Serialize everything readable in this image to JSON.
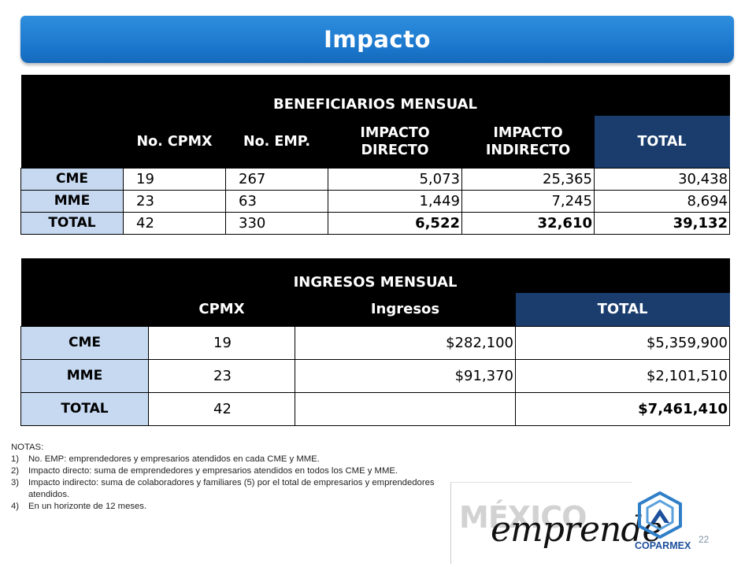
{
  "title": "Impacto",
  "beneficiarios": {
    "title": "BENEFICIARIOS MENSUAL",
    "columns": [
      "",
      "No. CPMX",
      "No. EMP.",
      "IMPACTO DIRECTO",
      "IMPACTO INDIRECTO",
      "TOTAL"
    ],
    "rows": [
      {
        "label": "CME",
        "cpmx": "19",
        "emp": "267",
        "directo": "5,073",
        "indirecto": "25,365",
        "total": "30,438"
      },
      {
        "label": "MME",
        "cpmx": "23",
        "emp": "63",
        "directo": "1,449",
        "indirecto": "7,245",
        "total": "8,694"
      },
      {
        "label": "TOTAL",
        "cpmx": "42",
        "emp": "330",
        "directo": "6,522",
        "indirecto": "32,610",
        "total": "39,132"
      }
    ]
  },
  "ingresos": {
    "title": "INGRESOS MENSUAL",
    "columns": [
      "",
      "CPMX",
      "Ingresos",
      "TOTAL"
    ],
    "rows": [
      {
        "label": "CME",
        "cpmx": "19",
        "ingresos": "$282,100",
        "total": "$5,359,900"
      },
      {
        "label": "MME",
        "cpmx": "23",
        "ingresos": "$91,370",
        "total": "$2,101,510"
      },
      {
        "label": "TOTAL",
        "cpmx": "42",
        "ingresos": "",
        "total": "$7,461,410"
      }
    ]
  },
  "notes": {
    "heading": "NOTAS:",
    "items": [
      {
        "num": "1)",
        "text": "No. EMP: emprendedores y empresarios atendidos en cada CME y MME."
      },
      {
        "num": "2)",
        "text": "Impacto directo: suma de emprendedores y empresarios atendidos en todos los CME y MME."
      },
      {
        "num": "3)",
        "text": "Impacto indirecto: suma de colaboradores y familiares (5) por el total de empresarios y emprendedores atendidos."
      },
      {
        "num": "4)",
        "text": "En un horizonte de 12 meses."
      }
    ]
  },
  "logo": {
    "mexico": "MÉXICO",
    "emprende": "emprende",
    "coparmex": "COPARMEX"
  },
  "page_number": "22",
  "colors": {
    "title_bar": "#1a76cb",
    "header_black": "#000000",
    "header_blue": "#1a3d6e",
    "label_fill": "#c6d9f1"
  }
}
